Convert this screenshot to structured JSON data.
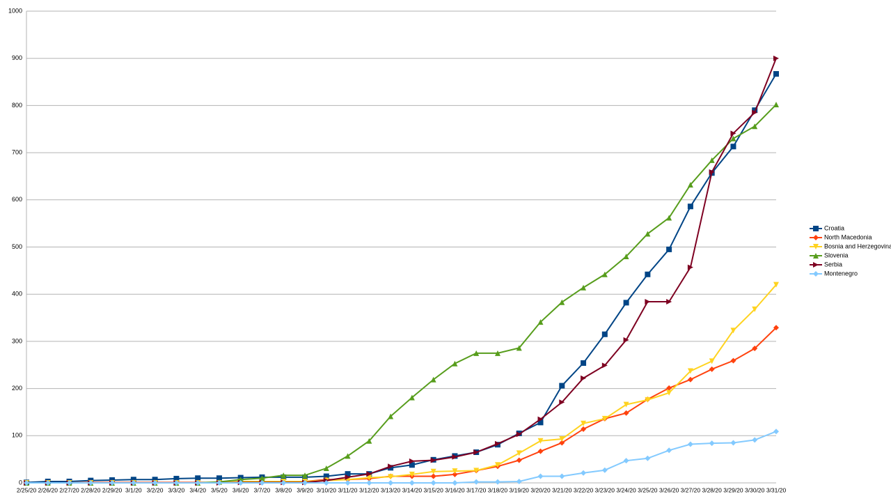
{
  "chart_data": {
    "type": "line",
    "categories": [
      "2/25/20",
      "2/26/20",
      "2/27/20",
      "2/28/20",
      "2/29/20",
      "3/1/20",
      "3/2/20",
      "3/3/20",
      "3/4/20",
      "3/5/20",
      "3/6/20",
      "3/7/20",
      "3/8/20",
      "3/9/20",
      "3/10/20",
      "3/11/20",
      "3/12/20",
      "3/13/20",
      "3/14/20",
      "3/15/20",
      "3/16/20",
      "3/17/20",
      "3/18/20",
      "3/19/20",
      "3/20/20",
      "3/21/20",
      "3/22/20",
      "3/23/20",
      "3/24/20",
      "3/25/20",
      "3/26/20",
      "3/27/20",
      "3/28/20",
      "3/29/20",
      "3/30/20",
      "3/31/20"
    ],
    "series": [
      {
        "name": "Croatia",
        "color": "#004586",
        "marker": "square",
        "values": [
          1,
          3,
          3,
          5,
          6,
          7,
          7,
          9,
          10,
          10,
          11,
          12,
          12,
          12,
          14,
          19,
          19,
          32,
          38,
          49,
          57,
          65,
          81,
          105,
          128,
          206,
          254,
          315,
          382,
          442,
          495,
          586,
          657,
          713,
          790,
          867
        ]
      },
      {
        "name": "North Macedonia",
        "color": "#ff420e",
        "marker": "diamond",
        "values": [
          0,
          0,
          0,
          1,
          1,
          1,
          1,
          1,
          1,
          1,
          1,
          3,
          3,
          3,
          7,
          7,
          9,
          14,
          14,
          14,
          18,
          26,
          35,
          48,
          67,
          85,
          114,
          136,
          148,
          177,
          201,
          219,
          241,
          259,
          285,
          329
        ]
      },
      {
        "name": "Bosnia and Herzegovina",
        "color": "#ffd320",
        "marker": "triangle-down",
        "values": [
          0,
          0,
          0,
          0,
          0,
          0,
          0,
          0,
          0,
          0,
          3,
          3,
          3,
          3,
          5,
          7,
          11,
          13,
          18,
          24,
          25,
          26,
          38,
          63,
          89,
          93,
          126,
          136,
          166,
          176,
          191,
          237,
          258,
          323,
          368,
          420
        ]
      },
      {
        "name": "Slovenia",
        "color": "#579d1c",
        "marker": "triangle-up",
        "values": [
          0,
          0,
          0,
          0,
          0,
          0,
          0,
          0,
          0,
          2,
          7,
          10,
          16,
          16,
          31,
          57,
          89,
          141,
          181,
          219,
          253,
          275,
          275,
          286,
          341,
          383,
          414,
          442,
          480,
          528,
          562,
          632,
          684,
          730,
          756,
          802
        ]
      },
      {
        "name": "Serbia",
        "color": "#7e0021",
        "marker": "triangle-right",
        "values": [
          0,
          0,
          0,
          0,
          0,
          0,
          0,
          0,
          0,
          0,
          1,
          1,
          1,
          1,
          5,
          12,
          19,
          35,
          46,
          48,
          55,
          65,
          83,
          103,
          135,
          171,
          222,
          249,
          303,
          384,
          384,
          457,
          659,
          741,
          785,
          900
        ]
      },
      {
        "name": "Montenegro",
        "color": "#83caff",
        "marker": "diamond",
        "values": [
          0,
          0,
          0,
          0,
          0,
          0,
          0,
          0,
          0,
          0,
          0,
          0,
          0,
          0,
          0,
          0,
          0,
          0,
          0,
          0,
          0,
          2,
          2,
          3,
          14,
          14,
          21,
          27,
          47,
          52,
          69,
          82,
          84,
          85,
          91,
          109
        ]
      }
    ],
    "ylim": [
      0,
      1000
    ],
    "yticks": [
      0,
      100,
      200,
      300,
      400,
      500,
      600,
      700,
      800,
      900,
      1000
    ],
    "grid": true,
    "legend": "right"
  }
}
